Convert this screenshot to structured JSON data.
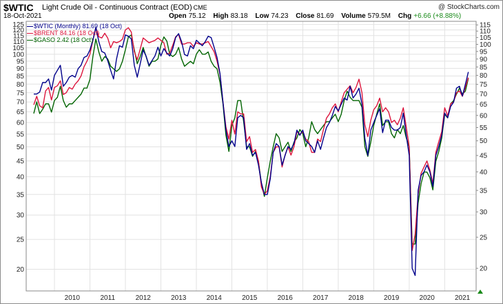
{
  "header": {
    "symbol": "$WTIC",
    "description": "Light Crude Oil - Continuous Contract (EOD)",
    "exchange": "CME",
    "date": "18-Oct-2021",
    "open_label": "Open",
    "open": "75.12",
    "high_label": "High",
    "high": "83.18",
    "low_label": "Low",
    "low": "74.23",
    "close_label": "Close",
    "close": "81.69",
    "volume_label": "Volume",
    "volume": "579.5M",
    "chg_label": "Chg",
    "chg": "+6.66 (+8.88%)",
    "watermark": "@ StockCharts.com"
  },
  "colors": {
    "wtic": "#00008b",
    "brent": "#dc143c",
    "gaso": "#006400",
    "grid": "#e2e2e2",
    "up_arrow": "#1a8a1a"
  },
  "chart_data": {
    "type": "line",
    "title": "",
    "frequency": "monthly",
    "x_start": "2009-06",
    "x_end": "2021-10",
    "x_ticks": [
      "2010",
      "2011",
      "2012",
      "2013",
      "2014",
      "2015",
      "2016",
      "2017",
      "2018",
      "2019",
      "2020",
      "2021"
    ],
    "left_axis": {
      "scale": "log",
      "range": [
        17,
        128
      ],
      "ticks": [
        125,
        120,
        115,
        110,
        105,
        100,
        95,
        90,
        85,
        80,
        75,
        70,
        65,
        60,
        55,
        50,
        45,
        40,
        35,
        30,
        25,
        20
      ]
    },
    "right_axis": {
      "scale": "log",
      "range": [
        17,
        118
      ],
      "ticks": [
        115,
        110,
        105,
        100,
        95,
        90,
        85,
        80,
        75,
        70,
        65,
        60,
        55,
        50,
        45,
        40,
        35,
        30,
        25,
        20
      ]
    },
    "grid": true,
    "legend_placement": "top-left",
    "series": [
      {
        "name": "$WTIC (Monthly) 81.69 (18 Oct)",
        "color": "#00008b",
        "axis": "right",
        "values": [
          70,
          70,
          71,
          76,
          76,
          78,
          72,
          80,
          83,
          86,
          74,
          76,
          79,
          80,
          79,
          84,
          86,
          91,
          92,
          96,
          103,
          113,
          102,
          95,
          94,
          89,
          83,
          78,
          90,
          99,
          98,
          107,
          106,
          104,
          86,
          79,
          87,
          96,
          92,
          86,
          89,
          92,
          98,
          92,
          97,
          94,
          92,
          97,
          105,
          108,
          102,
          93,
          92,
          99,
          97,
          103,
          101,
          99,
          102,
          106,
          105,
          98,
          91,
          81,
          66,
          54,
          48,
          50,
          48,
          59,
          60,
          59,
          47,
          49,
          45,
          46,
          42,
          37,
          34,
          34,
          38,
          46,
          49,
          48,
          42,
          45,
          48,
          47,
          49,
          54,
          52,
          54,
          50,
          49,
          48,
          46,
          50,
          47,
          51,
          55,
          57,
          60,
          64,
          62,
          65,
          68,
          67,
          74,
          68,
          70,
          73,
          65,
          51,
          45,
          54,
          57,
          60,
          63,
          53,
          58,
          58,
          55,
          54,
          54,
          55,
          61,
          52,
          45,
          20,
          19,
          35,
          39,
          40,
          42,
          40,
          36,
          45,
          48,
          52,
          61,
          59,
          64,
          66,
          73,
          74,
          69,
          75,
          82
        ]
      },
      {
        "name": "$BRENT 84.16 (18 Oct)",
        "color": "#dc143c",
        "ylabel": "",
        "axis": "left",
        "values": [
          68.5,
          73,
          68,
          67,
          76,
          78,
          71,
          78,
          79,
          82,
          74,
          75,
          78,
          77,
          80,
          82,
          85,
          91,
          95,
          100,
          111,
          122,
          114,
          113,
          117,
          113,
          105,
          110,
          109,
          110,
          112,
          120,
          122,
          118,
          102,
          96,
          104,
          113,
          111,
          109,
          110,
          111,
          113,
          111,
          109,
          100,
          101,
          107,
          114,
          116,
          108,
          108,
          109,
          109,
          106,
          109,
          108,
          108,
          109,
          110,
          106,
          102,
          95,
          86,
          70,
          58,
          53,
          61,
          55,
          65,
          64,
          64,
          52,
          54,
          48,
          49,
          45,
          37,
          35,
          36,
          40,
          48,
          50,
          50,
          43,
          47,
          50,
          47,
          50,
          56,
          55,
          56,
          53,
          52,
          48,
          48,
          53,
          52,
          57,
          62,
          64,
          67,
          69,
          65,
          70,
          75,
          77,
          79,
          75,
          78,
          83,
          75,
          59,
          54,
          61,
          66,
          68,
          72,
          65,
          67,
          65,
          60,
          61,
          59,
          62,
          67,
          58,
          50,
          23,
          26,
          35,
          41,
          43,
          45,
          42,
          38,
          48,
          52,
          56,
          67,
          63,
          69,
          70,
          75,
          76,
          73,
          78,
          84
        ]
      },
      {
        "name": "$GASO 2.42 (18 Oct)",
        "color": "#006400",
        "values": [
          1.86,
          2.03,
          1.86,
          1.92,
          2.0,
          2.0,
          1.88,
          2.05,
          2.1,
          2.28,
          2.05,
          1.95,
          2.0,
          2.0,
          2.05,
          2.1,
          2.15,
          2.25,
          2.25,
          2.4,
          2.85,
          3.25,
          2.95,
          2.75,
          2.85,
          2.8,
          2.65,
          2.6,
          2.55,
          2.6,
          2.75,
          3.0,
          3.3,
          3.35,
          3.0,
          2.7,
          2.85,
          3.05,
          2.85,
          2.65,
          2.75,
          2.75,
          2.8,
          3.1,
          3.3,
          3.2,
          2.9,
          2.85,
          2.9,
          3.05,
          2.8,
          2.65,
          2.7,
          2.75,
          2.7,
          2.9,
          3.0,
          2.9,
          2.9,
          2.95,
          2.75,
          2.65,
          2.6,
          2.35,
          2.0,
          1.58,
          1.4,
          1.7,
          1.8,
          2.05,
          2.05,
          1.75,
          1.45,
          1.45,
          1.35,
          1.4,
          1.3,
          1.1,
          1.0,
          1.15,
          1.3,
          1.45,
          1.6,
          1.55,
          1.4,
          1.45,
          1.5,
          1.4,
          1.5,
          1.55,
          1.65,
          1.6,
          1.45,
          1.55,
          1.75,
          1.65,
          1.6,
          1.65,
          1.7,
          1.75,
          1.75,
          1.8,
          1.85,
          1.75,
          1.85,
          2.05,
          2.2,
          2.1,
          2.05,
          2.05,
          2.05,
          1.95,
          1.45,
          1.35,
          1.5,
          1.7,
          1.85,
          2.0,
          1.7,
          1.75,
          1.75,
          1.6,
          1.55,
          1.65,
          1.6,
          1.7,
          1.55,
          1.45,
          0.7,
          0.7,
          0.95,
          1.1,
          1.2,
          1.2,
          1.15,
          1.05,
          1.3,
          1.4,
          1.55,
          1.85,
          1.8,
          2.0,
          2.05,
          2.15,
          2.25,
          2.15,
          2.2,
          2.42
        ]
      }
    ]
  }
}
